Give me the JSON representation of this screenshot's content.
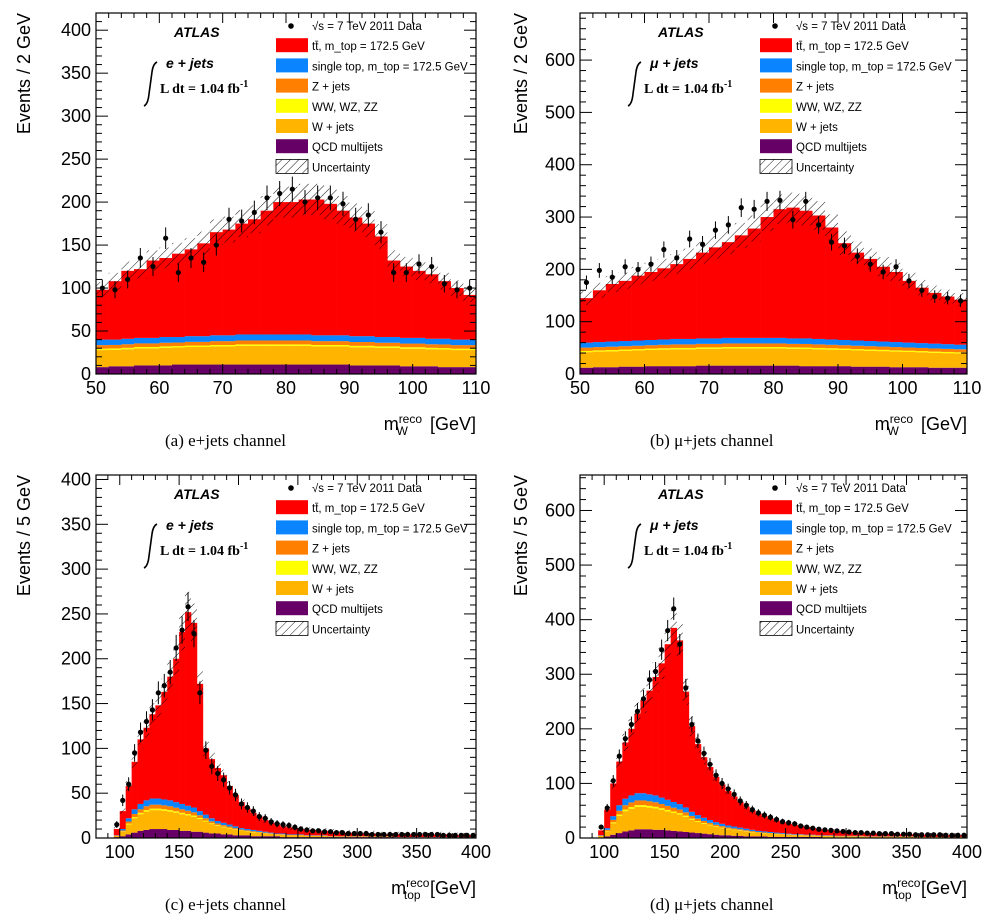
{
  "figure": {
    "legend": {
      "data": "√s = 7 TeV 2011 Data",
      "ttbar": "tt̄, m_top = 172.5 GeV",
      "singletop": "single top, m_top = 172.5 GeV",
      "zjets": "Z + jets",
      "diboson": "WW, WZ, ZZ",
      "wjets": "W + jets",
      "qcd": "QCD multijets",
      "unc": "Uncertainty"
    },
    "colors": {
      "ttbar": "#ff0000",
      "singletop": "#0a84ff",
      "zjets": "#ff7f00",
      "diboson": "#ffff00",
      "wjets": "#ffb400",
      "qcd": "#660066"
    },
    "atlas_label": "ATLAS",
    "lumi_label": "L dt = 1.04 fb",
    "lumi_superscript": "-1"
  },
  "chart_data": [
    {
      "type": "bar",
      "panel": "a",
      "caption": "(a)  e+jets channel",
      "channel_label": "e + jets",
      "ylabel": "Events / 2 GeV",
      "xlabel": "m_W^reco [GeV]",
      "xlim": [
        50,
        110
      ],
      "ylim": [
        0,
        420
      ],
      "xticks": [
        50,
        60,
        70,
        80,
        90,
        100,
        110
      ],
      "yticks": [
        0,
        50,
        100,
        150,
        200,
        250,
        300,
        350,
        400
      ],
      "bin_width": 2,
      "stack_total": [
        98,
        108,
        120,
        122,
        132,
        135,
        140,
        145,
        152,
        165,
        168,
        175,
        180,
        190,
        200,
        200,
        203,
        203,
        198,
        190,
        182,
        175,
        160,
        132,
        125,
        120,
        116,
        108,
        100,
        92
      ],
      "background_total": [
        40,
        40,
        41,
        42,
        42,
        43,
        43,
        44,
        44,
        45,
        45,
        46,
        46,
        46,
        46,
        46,
        46,
        45,
        45,
        45,
        44,
        44,
        43,
        43,
        42,
        42,
        41,
        41,
        40,
        40
      ],
      "qcd": [
        8,
        9,
        9,
        10,
        10,
        10,
        11,
        11,
        11,
        11,
        11,
        11,
        11,
        11,
        11,
        11,
        11,
        11,
        11,
        11,
        10,
        10,
        10,
        10,
        9,
        9,
        9,
        8,
        8,
        8
      ],
      "data_points": [
        100,
        98,
        110,
        135,
        125,
        158,
        118,
        135,
        130,
        150,
        180,
        178,
        188,
        205,
        210,
        215,
        200,
        205,
        205,
        198,
        180,
        185,
        165,
        118,
        118,
        128,
        125,
        105,
        98,
        100
      ]
    },
    {
      "type": "bar",
      "panel": "b",
      "caption": "(b)  μ+jets channel",
      "channel_label": "μ + jets",
      "ylabel": "Events / 2 GeV",
      "xlabel": "m_W^reco [GeV]",
      "xlim": [
        50,
        110
      ],
      "ylim": [
        0,
        690
      ],
      "xticks": [
        50,
        60,
        70,
        80,
        90,
        100,
        110
      ],
      "yticks": [
        0,
        100,
        200,
        300,
        400,
        500,
        600
      ],
      "bin_width": 2,
      "stack_total": [
        145,
        160,
        172,
        178,
        188,
        195,
        202,
        210,
        220,
        232,
        242,
        252,
        265,
        278,
        300,
        315,
        318,
        312,
        303,
        280,
        250,
        232,
        220,
        205,
        195,
        178,
        165,
        155,
        148,
        142
      ],
      "background_total": [
        60,
        61,
        62,
        63,
        64,
        65,
        66,
        67,
        67,
        68,
        68,
        69,
        69,
        69,
        69,
        69,
        68,
        68,
        67,
        66,
        65,
        64,
        63,
        62,
        61,
        60,
        59,
        58,
        57,
        56
      ],
      "qcd": [
        12,
        13,
        13,
        14,
        14,
        15,
        15,
        15,
        15,
        16,
        16,
        16,
        16,
        16,
        16,
        16,
        16,
        15,
        15,
        15,
        15,
        14,
        14,
        14,
        13,
        13,
        13,
        12,
        12,
        12
      ],
      "data_points": [
        175,
        198,
        185,
        205,
        200,
        210,
        238,
        222,
        258,
        248,
        275,
        285,
        318,
        315,
        330,
        332,
        295,
        330,
        285,
        252,
        245,
        225,
        210,
        195,
        205,
        178,
        160,
        148,
        145,
        140
      ]
    },
    {
      "type": "bar",
      "panel": "c",
      "caption": "(c)  e+jets channel",
      "channel_label": "e + jets",
      "ylabel": "Events / 5 GeV",
      "xlabel": "m_top^reco [GeV]",
      "xlim": [
        80,
        400
      ],
      "ylim": [
        0,
        405
      ],
      "xticks": [
        100,
        150,
        200,
        250,
        300,
        350,
        400
      ],
      "yticks": [
        0,
        50,
        100,
        150,
        200,
        250,
        300,
        350,
        400
      ],
      "bin_width": 5,
      "stack_total": [
        0,
        0,
        0,
        10,
        30,
        58,
        85,
        110,
        123,
        138,
        148,
        163,
        180,
        200,
        230,
        252,
        240,
        172,
        100,
        88,
        78,
        70,
        58,
        48,
        40,
        33,
        28,
        24,
        20,
        17,
        15,
        13,
        12,
        11,
        10,
        9,
        9,
        8,
        8,
        7,
        7,
        6,
        6,
        5,
        5,
        5,
        5,
        4,
        4,
        4,
        4,
        4,
        4,
        4,
        4,
        4,
        4,
        4,
        4,
        4,
        3,
        3,
        3,
        3
      ],
      "background_total": [
        0,
        0,
        0,
        3,
        10,
        22,
        32,
        38,
        42,
        44,
        44,
        43,
        42,
        40,
        38,
        36,
        34,
        30,
        26,
        22,
        19,
        17,
        15,
        13,
        11,
        10,
        9,
        8,
        7,
        6,
        5,
        5,
        4,
        4,
        4,
        3,
        3,
        3,
        3,
        2,
        2,
        2,
        2,
        2,
        2,
        2,
        2,
        2,
        2,
        2,
        1,
        1,
        1,
        1,
        1,
        1,
        1,
        1,
        1,
        1,
        1,
        1,
        1,
        1
      ],
      "qcd": [
        0,
        0,
        0,
        1,
        2,
        4,
        6,
        8,
        9,
        10,
        10,
        10,
        9,
        9,
        8,
        8,
        7,
        7,
        6,
        5,
        5,
        4,
        4,
        3,
        3,
        3,
        2,
        2,
        2,
        2,
        2,
        1,
        1,
        1,
        1,
        1,
        1,
        1,
        1,
        1,
        1,
        1,
        1,
        1,
        1,
        1,
        1,
        1,
        1,
        1,
        0,
        0,
        0,
        0,
        0,
        0,
        0,
        0,
        0,
        0,
        0,
        0,
        0,
        0
      ],
      "data_points": [
        0,
        0,
        0,
        15,
        42,
        60,
        95,
        118,
        130,
        143,
        162,
        170,
        185,
        212,
        232,
        258,
        228,
        162,
        98,
        80,
        72,
        65,
        56,
        48,
        38,
        34,
        30,
        24,
        22,
        18,
        16,
        15,
        14,
        12,
        10,
        9,
        8,
        8,
        7,
        7,
        6,
        6,
        5,
        5,
        5,
        5,
        4,
        4,
        4,
        4,
        4,
        4,
        4,
        4,
        4,
        4,
        4,
        4,
        3,
        3,
        3,
        3,
        3,
        3
      ]
    },
    {
      "type": "bar",
      "panel": "d",
      "caption": "(d)  μ+jets channel",
      "channel_label": "μ + jets",
      "ylabel": "Events / 5 GeV",
      "xlabel": "m_top^reco [GeV]",
      "xlim": [
        80,
        400
      ],
      "ylim": [
        0,
        665
      ],
      "xticks": [
        100,
        150,
        200,
        250,
        300,
        350,
        400
      ],
      "yticks": [
        0,
        100,
        200,
        300,
        400,
        500,
        600
      ],
      "bin_width": 5,
      "stack_total": [
        0,
        0,
        0,
        14,
        52,
        100,
        140,
        175,
        200,
        228,
        252,
        270,
        295,
        320,
        355,
        385,
        362,
        268,
        205,
        172,
        148,
        130,
        112,
        98,
        86,
        76,
        66,
        58,
        51,
        45,
        40,
        36,
        32,
        29,
        26,
        24,
        22,
        20,
        18,
        16,
        15,
        14,
        13,
        12,
        11,
        10,
        10,
        9,
        9,
        8,
        8,
        8,
        7,
        7,
        7,
        6,
        6,
        6,
        6,
        6,
        5,
        5,
        5,
        5
      ],
      "background_total": [
        0,
        0,
        0,
        5,
        18,
        40,
        60,
        72,
        78,
        82,
        82,
        80,
        78,
        74,
        70,
        66,
        62,
        56,
        48,
        42,
        37,
        33,
        29,
        26,
        23,
        21,
        19,
        17,
        15,
        13,
        12,
        11,
        10,
        9,
        8,
        7,
        7,
        6,
        6,
        5,
        5,
        5,
        4,
        4,
        4,
        4,
        4,
        3,
        3,
        3,
        3,
        3,
        3,
        3,
        3,
        3,
        2,
        2,
        2,
        2,
        2,
        2,
        2,
        2
      ],
      "qcd": [
        0,
        0,
        0,
        1,
        3,
        6,
        9,
        12,
        14,
        16,
        16,
        16,
        15,
        15,
        14,
        13,
        12,
        11,
        10,
        9,
        8,
        7,
        6,
        5,
        5,
        4,
        4,
        3,
        3,
        3,
        3,
        2,
        2,
        2,
        2,
        2,
        2,
        2,
        2,
        2,
        1,
        1,
        1,
        1,
        1,
        1,
        1,
        1,
        1,
        1,
        1,
        1,
        1,
        1,
        1,
        1,
        1,
        1,
        1,
        1,
        1,
        1,
        1,
        1
      ],
      "data_points": [
        0,
        0,
        0,
        20,
        55,
        105,
        150,
        182,
        208,
        232,
        255,
        290,
        305,
        345,
        380,
        420,
        355,
        275,
        208,
        178,
        155,
        135,
        115,
        100,
        90,
        80,
        68,
        60,
        52,
        46,
        42,
        38,
        34,
        30,
        28,
        26,
        22,
        20,
        18,
        16,
        15,
        14,
        13,
        12,
        11,
        10,
        10,
        9,
        9,
        8,
        8,
        8,
        7,
        7,
        7,
        6,
        6,
        6,
        6,
        6,
        5,
        5,
        5,
        5
      ]
    }
  ]
}
